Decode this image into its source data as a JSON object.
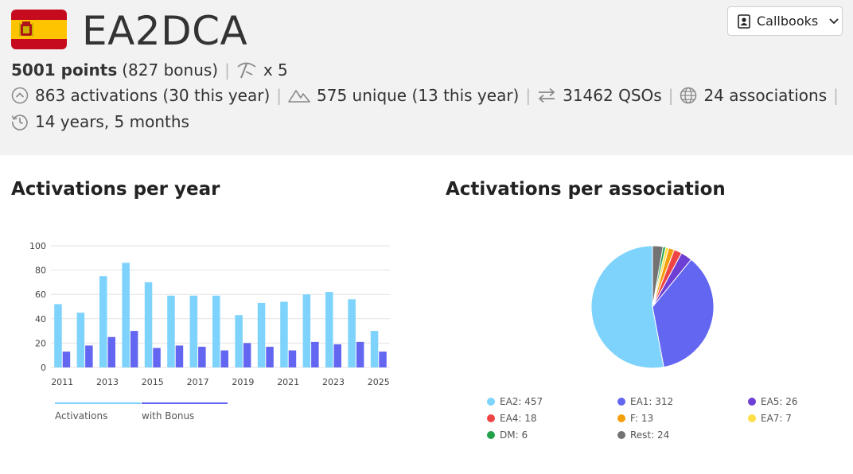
{
  "header": {
    "callsign": "EA2DCA",
    "points": "5001 points",
    "bonus": "(827 bonus)",
    "multiplier": "x 5",
    "activations": "863 activations (30 this year)",
    "unique": "575 unique (13 this year)",
    "qsos": "31462 QSOs",
    "associations": "24 associations",
    "duration": "14 years, 5 months",
    "callbooks_label": "Callbooks"
  },
  "left_panel": {
    "title": "Activations per year"
  },
  "right_panel": {
    "title": "Activations per association"
  },
  "chart_data": [
    {
      "type": "bar",
      "categories": [
        "2011",
        "2012",
        "2013",
        "2014",
        "2015",
        "2016",
        "2017",
        "2018",
        "2019",
        "2020",
        "2021",
        "2022",
        "2023",
        "2024",
        "2025"
      ],
      "tick_labels": [
        "2011",
        "2013",
        "2015",
        "2017",
        "2019",
        "2021",
        "2023",
        "2025"
      ],
      "series": [
        {
          "name": "Activations",
          "values": [
            52,
            45,
            75,
            86,
            70,
            59,
            59,
            59,
            43,
            53,
            54,
            60,
            62,
            56,
            30
          ],
          "color": "#7dd3fc"
        },
        {
          "name": "with Bonus",
          "values": [
            13,
            18,
            25,
            30,
            16,
            18,
            17,
            14,
            20,
            17,
            14,
            21,
            19,
            21,
            13
          ],
          "color": "#6366f1"
        }
      ],
      "ylim": [
        0,
        100
      ],
      "yticks": [
        0,
        20,
        40,
        60,
        80,
        100
      ],
      "grid": true,
      "legend": "bottom"
    },
    {
      "type": "pie",
      "slices": [
        {
          "label": "EA2",
          "value": 457,
          "color": "#7dd3fc"
        },
        {
          "label": "EA1",
          "value": 312,
          "color": "#6366f1"
        },
        {
          "label": "EA5",
          "value": 26,
          "color": "#6d3fd4"
        },
        {
          "label": "EA4",
          "value": 18,
          "color": "#ef4444"
        },
        {
          "label": "F",
          "value": 13,
          "color": "#f59e0b"
        },
        {
          "label": "EA7",
          "value": 7,
          "color": "#fde047"
        },
        {
          "label": "DM",
          "value": 6,
          "color": "#22a34a"
        },
        {
          "label": "Rest",
          "value": 24,
          "color": "#737373"
        }
      ],
      "legend_labels": [
        "EA2: 457",
        "EA1: 312",
        "EA5: 26",
        "EA4: 18",
        "F: 13",
        "EA7: 7",
        "DM: 6",
        "Rest: 24"
      ],
      "legend": "bottom"
    }
  ]
}
